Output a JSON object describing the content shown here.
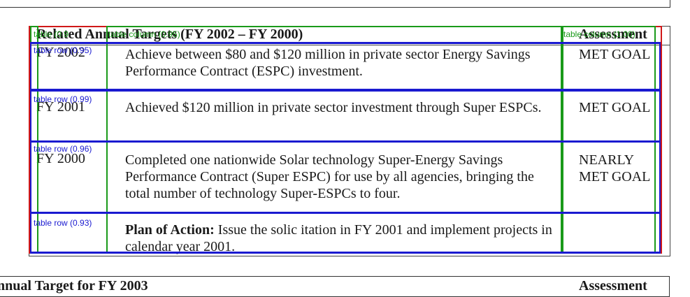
{
  "table": {
    "header_title": "Related Annual Targets (FY 2002 – FY 2000)",
    "header_assessment": "Assessment",
    "rows": [
      {
        "year": "FY 2002",
        "description": "Achieve between $80 and $120 million in private sector Energy Savings Performance Contract (ESPC) investment.",
        "assessment": "MET GOAL"
      },
      {
        "year": "FY 2001",
        "description": "Achieved $120 million in private sector investment through Super ESPCs.",
        "assessment": "MET GOAL"
      },
      {
        "year": "FY 2000",
        "description": "Completed one nationwide Solar technology Super-Energy Savings Performance Contract (Super ESPC) for use by all agencies, bringing the total number of technology Super-ESPCs to four.",
        "assessment": "NEARLY MET GOAL"
      }
    ],
    "plan_of_action_label": "Plan of Action:",
    "plan_of_action_text": "Issue the solic itation in FY 2001 and implement projects in calendar year 2001."
  },
  "overlays": {
    "table_label": "table (0.9",
    "column_labels": [
      "table column (0.95)",
      "table column (0.95)",
      "table column (1.00)"
    ],
    "row_labels": [
      "table row (0.95)",
      "table row (0.99)",
      "table row (0.96)",
      "table row (0.93)"
    ]
  },
  "next_section": {
    "title": "nnual Target for FY 2003",
    "assessment": "Assessment"
  }
}
